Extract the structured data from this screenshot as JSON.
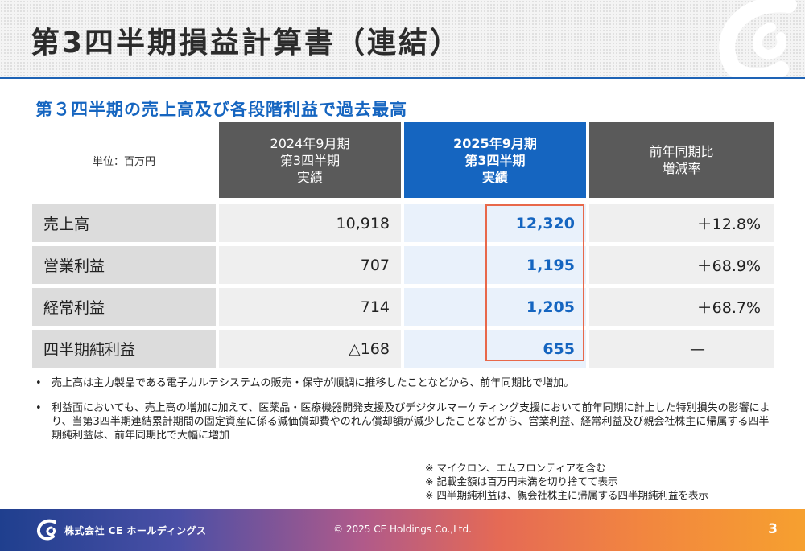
{
  "title": "第3四半期損益計算書（連結）",
  "subtitle": "第３四半期の売上高及び各段階利益で過去最高",
  "unit_label": "単位：百万円",
  "headers": {
    "prev": [
      "2024年9月期",
      "第3四半期",
      "実績"
    ],
    "curr": [
      "2025年9月期",
      "第3四半期",
      "実績"
    ],
    "ratio": [
      "前年同期比",
      "増減率"
    ]
  },
  "rows": [
    {
      "label": "売上高",
      "prev": "10,918",
      "curr": "12,320",
      "ratio": "＋12.8%"
    },
    {
      "label": "営業利益",
      "prev": "707",
      "curr": "1,195",
      "ratio": "＋68.9%"
    },
    {
      "label": "経常利益",
      "prev": "714",
      "curr": "1,205",
      "ratio": "＋68.7%"
    },
    {
      "label": "四半期純利益",
      "prev": "△168",
      "curr": "655",
      "ratio": "—"
    }
  ],
  "bullets": [
    "売上高は主力製品である電子カルテシステムの販売・保守が順調に推移したことなどから、前年同期比で増加。",
    "利益面においても、売上高の増加に加えて、医薬品・医療機器開発支援及びデジタルマーケティング支援において前年同期に計上した特別損失の影響により、当第3四半期連結累計期間の固定資産に係る減価償却費やのれん償却額が減少したことなどから、営業利益、経常利益及び親会社株主に帰属する四半期純利益は、前年同期比で大幅に増加"
  ],
  "notes": [
    "※ マイクロン、エムフロンティアを含む",
    "※ 記載金額は百万円未満を切り捨てて表示",
    "※ 四半期純利益は、親会社株主に帰属する四半期純利益を表示"
  ],
  "footer": {
    "company": "株式会社 CE ホールディングス",
    "copyright": "© 2025 CE Holdings Co.,Ltd.",
    "page": "3"
  },
  "colors": {
    "accent": "#1565c0",
    "header_gray": "#5a5a5a",
    "highlight": "#e8684a"
  }
}
